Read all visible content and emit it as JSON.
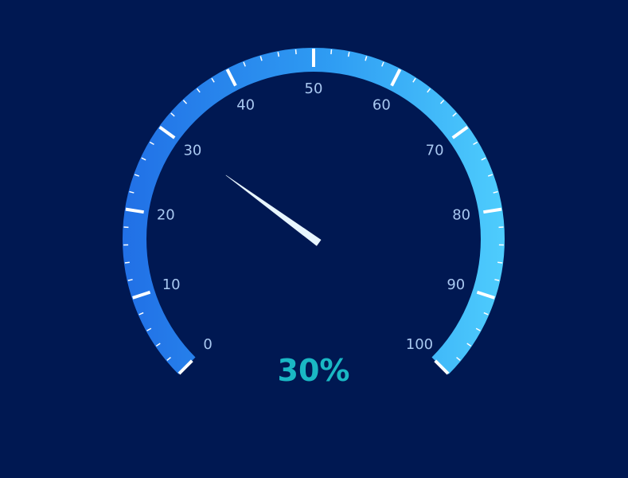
{
  "chart_data": {
    "type": "gauge",
    "value": 30,
    "value_label": "30%",
    "min": 0,
    "max": 100,
    "tick_labels": [
      "0",
      "10",
      "20",
      "30",
      "40",
      "50",
      "60",
      "70",
      "80",
      "90",
      "100"
    ],
    "split_number": 10,
    "minor_ticks_per_split": 5,
    "start_angle_deg": 225,
    "end_angle_deg": -45,
    "colors": {
      "background": "#001852",
      "arc_start": "#2170e6",
      "arc_mid": "#2f9df3",
      "arc_end": "#4ecdfd",
      "major_tick": "#ffffff",
      "minor_tick": "#ffffff",
      "tick_label": "#a9c8f0",
      "needle": "#e8f6ff",
      "value_text": "#1ab8c4"
    }
  }
}
